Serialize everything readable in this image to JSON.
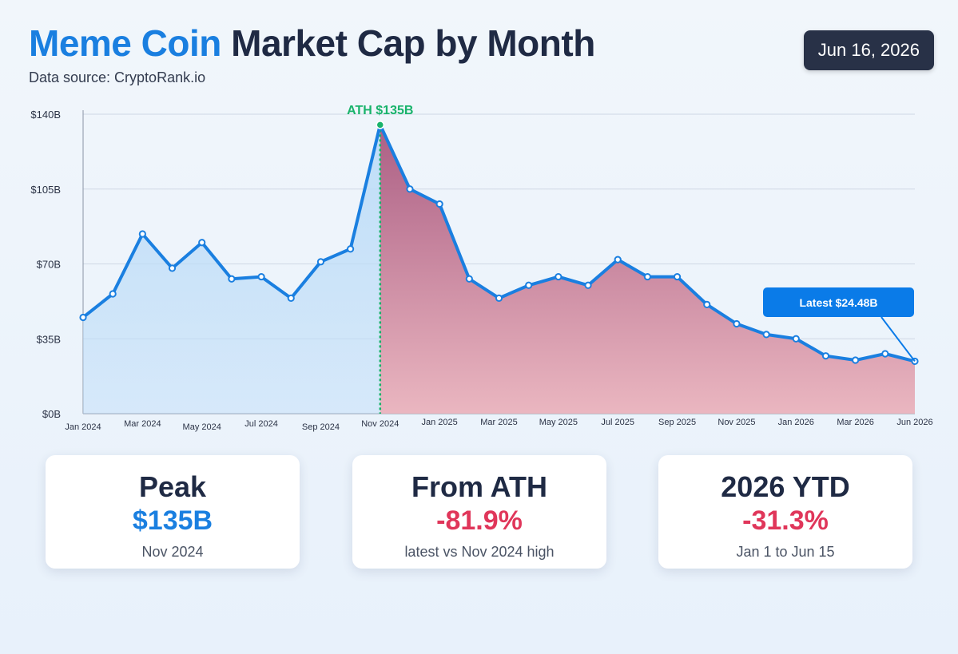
{
  "header": {
    "title_accent": "Meme Coin",
    "title_rest": "Market Cap by Month",
    "subtitle": "Data source: CryptoRank.io",
    "date": "Jun 16, 2026"
  },
  "colors": {
    "accent": "#1a7fe0",
    "ath": "#19b36b",
    "negative": "#e0365a",
    "pre_peak_fill": "#bcdcf8",
    "post_peak_fill": "#a8577e",
    "callout": "#0a7be8"
  },
  "chart_data": {
    "type": "area",
    "x": [
      "Jan 2024",
      "Feb 2024",
      "Mar 2024",
      "Apr 2024",
      "May 2024",
      "Jun 2024",
      "Jul 2024",
      "Aug 2024",
      "Sep 2024",
      "Oct 2024",
      "Nov 2024",
      "Dec 2024",
      "Jan 2025",
      "Feb 2025",
      "Mar 2025",
      "Apr 2025",
      "May 2025",
      "Jun 2025",
      "Jul 2025",
      "Aug 2025",
      "Sep 2025",
      "Oct 2025",
      "Nov 2025",
      "Dec 2025",
      "Jan 2026",
      "Feb 2026",
      "Mar 2026",
      "Apr 2026",
      "Jun 2026"
    ],
    "values": [
      45,
      56,
      84,
      68,
      80,
      63,
      64,
      54,
      71,
      77,
      135,
      105,
      98,
      63,
      54,
      60,
      64,
      60,
      72,
      64,
      64,
      51,
      42,
      37,
      35,
      27,
      25,
      28,
      24.48
    ],
    "tick_labels": [
      "Jan 2024",
      "Mar 2024",
      "May 2024",
      "Jul 2024",
      "Sep 2024",
      "Nov 2024",
      "Jan 2025",
      "Mar 2025",
      "May 2025",
      "Jul 2025",
      "Sep 2025",
      "Nov 2025",
      "Jan 2026",
      "Mar 2026",
      "Jun 2026"
    ],
    "tick_indices": [
      0,
      2,
      4,
      6,
      8,
      10,
      12,
      14,
      16,
      18,
      20,
      22,
      24,
      26,
      28
    ],
    "y_ticks": [
      0,
      35,
      70,
      105,
      140
    ],
    "y_tick_labels": [
      "$0B",
      "$35B",
      "$70B",
      "$105B",
      "$140B"
    ],
    "ylim": [
      0,
      140
    ],
    "grid": true,
    "peak_index": 10,
    "annotations": {
      "ath_label": "ATH $135B",
      "latest_label": "Latest $24.48B"
    }
  },
  "cards": [
    {
      "title": "Peak",
      "value": "$135B",
      "sub": "Nov 2024",
      "tone": "blue"
    },
    {
      "title": "From ATH",
      "value": "-81.9%",
      "sub": "latest vs Nov 2024 high",
      "tone": "red"
    },
    {
      "title": "2026 YTD",
      "value": "-31.3%",
      "sub": "Jan 1 to Jun 15",
      "tone": "red"
    }
  ]
}
